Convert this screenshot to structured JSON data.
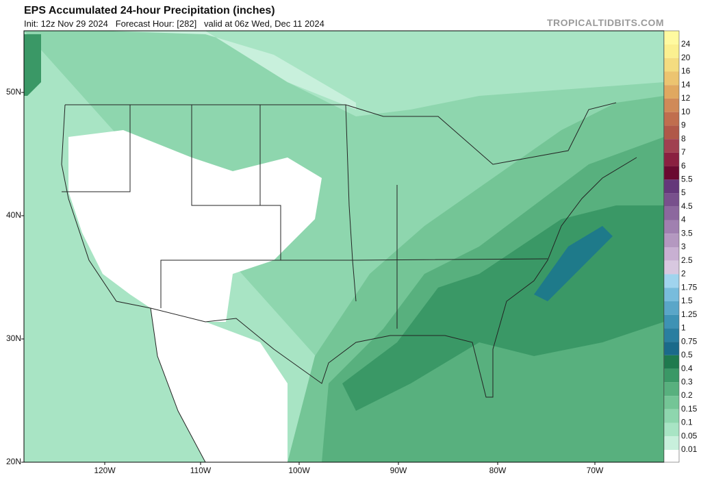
{
  "header": {
    "title": "EPS Accumulated 24-hour Precipitation (inches)",
    "subtitle": "Init: 12z Nov 29 2024   Forecast Hour: [282]   valid at 06z Wed, Dec 11 2024",
    "watermark": "TROPICALTIDBITS.COM"
  },
  "map": {
    "lat_labels": [
      "50N",
      "40N",
      "30N",
      "20N"
    ],
    "lon_labels": [
      "120W",
      "110W",
      "100W",
      "90W",
      "80W",
      "70W"
    ]
  },
  "colorbar": {
    "labels": [
      "24",
      "20",
      "16",
      "14",
      "12",
      "10",
      "9",
      "8",
      "7",
      "6",
      "5.5",
      "5",
      "4.5",
      "4",
      "3.5",
      "3",
      "2.5",
      "2",
      "1.75",
      "1.5",
      "1.25",
      "1",
      "0.75",
      "0.5",
      "0.4",
      "0.3",
      "0.2",
      "0.15",
      "0.1",
      "0.05",
      "0.01"
    ]
  }
}
